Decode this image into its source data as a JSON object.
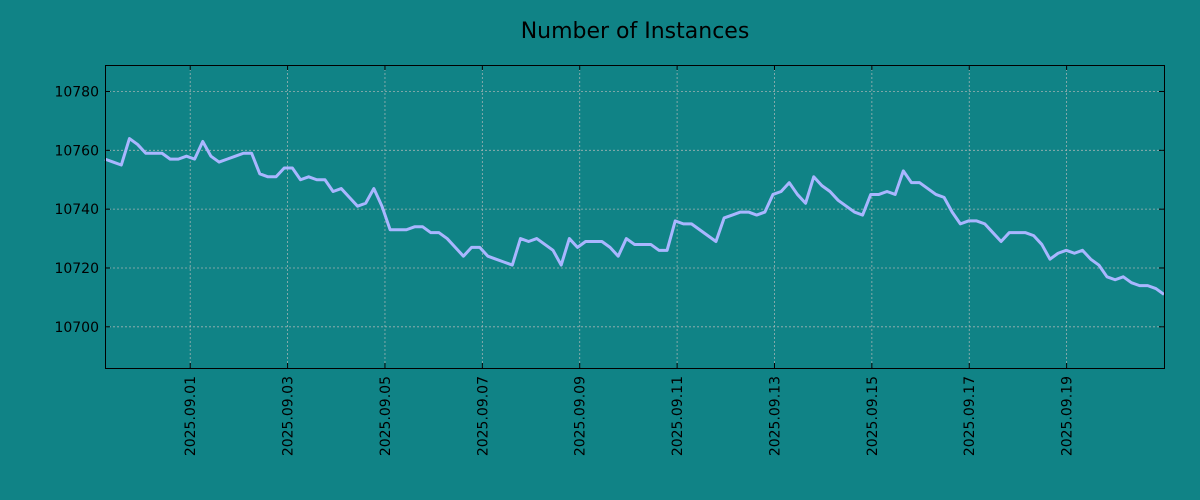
{
  "chart_data": {
    "type": "line",
    "title": "Number of Instances",
    "xlabel": "",
    "ylabel": "",
    "x_ticks": [
      "2025.09.01",
      "2025.09.03",
      "2025.09.05",
      "2025.09.07",
      "2025.09.09",
      "2025.09.11",
      "2025.09.13",
      "2025.09.15",
      "2025.09.17",
      "2025.09.19"
    ],
    "y_ticks": [
      10700,
      10720,
      10740,
      10760,
      10780
    ],
    "xlim": [
      "2025-08-30 06:00",
      "2025-09-21 00:00"
    ],
    "ylim": [
      10686,
      10789
    ],
    "grid": true,
    "line_color": "#a9b6ff",
    "background_color": "#108386",
    "series": [
      {
        "values": [
          10757,
          10756,
          10755,
          10764,
          10762,
          10759,
          10759,
          10759,
          10757,
          10757,
          10758,
          10757,
          10763,
          10758,
          10756,
          10757,
          10758,
          10759,
          10759,
          10752,
          10751,
          10751,
          10754,
          10754,
          10750,
          10751,
          10750,
          10750,
          10746,
          10747,
          10744,
          10741,
          10742,
          10747,
          10741,
          10733,
          10733,
          10733,
          10734,
          10734,
          10732,
          10732,
          10730,
          10727,
          10724,
          10727,
          10727,
          10724,
          10723,
          10722,
          10721,
          10730,
          10729,
          10730,
          10728,
          10726,
          10721,
          10730,
          10727,
          10729,
          10729,
          10729,
          10727,
          10724,
          10730,
          10728,
          10728,
          10728,
          10726,
          10726,
          10736,
          10735,
          10735,
          10733,
          10731,
          10729,
          10737,
          10738,
          10739,
          10739,
          10738,
          10739,
          10745,
          10746,
          10749,
          10745,
          10742,
          10751,
          10748,
          10746,
          10743,
          10741,
          10739,
          10738,
          10745,
          10745,
          10746,
          10745,
          10753,
          10749,
          10749,
          10747,
          10745,
          10744,
          10739,
          10735,
          10736,
          10736,
          10735,
          10732,
          10729,
          10732,
          10732,
          10732,
          10731,
          10728,
          10723,
          10725,
          10726,
          10725,
          10726,
          10723,
          10721,
          10717,
          10716,
          10717,
          10715,
          10714,
          10714,
          10713,
          10711
        ]
      }
    ]
  }
}
